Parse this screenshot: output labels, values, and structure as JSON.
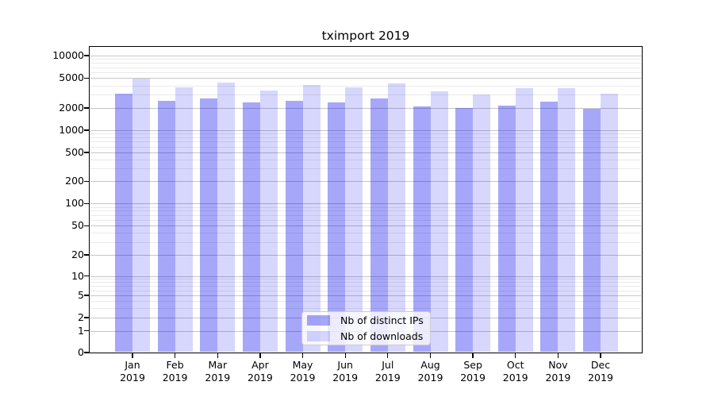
{
  "chart_data": {
    "type": "bar",
    "title": "tximport 2019",
    "categories": [
      "Jan",
      "Feb",
      "Mar",
      "Apr",
      "May",
      "Jun",
      "Jul",
      "Aug",
      "Sep",
      "Oct",
      "Nov",
      "Dec"
    ],
    "category_year": "2019",
    "series": [
      {
        "name": "Nb of distinct IPs",
        "color": "rgba(0,0,240,0.345)",
        "values": [
          3080,
          2500,
          2650,
          2350,
          2500,
          2400,
          2650,
          2080,
          1990,
          2170,
          2430,
          1970
        ]
      },
      {
        "name": "Nb of downloads",
        "color": "rgba(0,0,240,0.155)",
        "values": [
          4950,
          3800,
          4350,
          3450,
          4050,
          3750,
          4250,
          3300,
          3060,
          3640,
          3670,
          3120
        ]
      }
    ],
    "y_axis": {
      "scale": "log-with-zero",
      "ticks": [
        0,
        1,
        2,
        5,
        10,
        20,
        50,
        100,
        200,
        500,
        1000,
        2000,
        5000,
        10000
      ]
    },
    "x_axis": {
      "tick_line1": [
        "Jan",
        "Feb",
        "Mar",
        "Apr",
        "May",
        "Jun",
        "Jul",
        "Aug",
        "Sep",
        "Oct",
        "Nov",
        "Dec"
      ],
      "tick_line2": "2019"
    },
    "legend": {
      "position": "lower-center",
      "entries": [
        "Nb of distinct IPs",
        "Nb of downloads"
      ]
    },
    "grid": "horizontal major+minor",
    "colors": {
      "bar_distinct_ips": "rgba(0,0,240,0.345)",
      "bar_downloads": "rgba(0,0,240,0.155)",
      "grid_major": "#c6c6c6",
      "grid_minor": "#eaeaea",
      "spine": "#000000"
    }
  }
}
